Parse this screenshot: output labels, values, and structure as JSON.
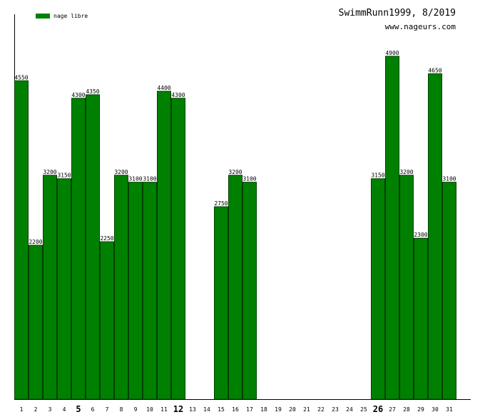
{
  "chart_data": {
    "type": "bar",
    "title": "SwimmRunn1999, 8/2019",
    "subtitle": "www.nageurs.com",
    "series": [
      {
        "name": "nage libre",
        "color": "#008000",
        "values": [
          4550,
          2200,
          3200,
          3150,
          4300,
          4350,
          2250,
          3200,
          3100,
          3100,
          4400,
          4300,
          null,
          null,
          2750,
          3200,
          3100,
          null,
          null,
          null,
          null,
          null,
          null,
          null,
          null,
          3150,
          4900,
          3200,
          2300,
          4650,
          3100
        ]
      }
    ],
    "categories": [
      "1",
      "2",
      "3",
      "4",
      "5",
      "6",
      "7",
      "8",
      "9",
      "10",
      "11",
      "12",
      "13",
      "14",
      "15",
      "16",
      "17",
      "18",
      "19",
      "20",
      "21",
      "22",
      "23",
      "24",
      "25",
      "26",
      "27",
      "28",
      "29",
      "30",
      "31"
    ],
    "bold_categories": [
      4,
      11,
      25
    ],
    "ylim": [
      0,
      5500
    ]
  }
}
